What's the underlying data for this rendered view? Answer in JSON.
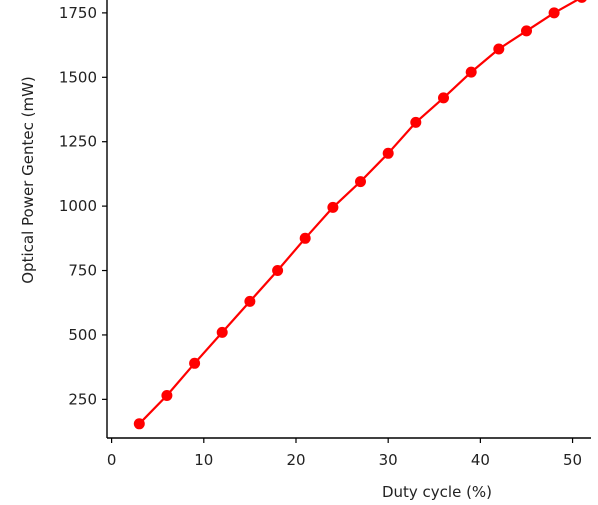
{
  "chart_data": {
    "type": "line",
    "title": "",
    "xlabel": "Duty cycle (%)",
    "ylabel": "Optical Power Gentec (mW)",
    "xlim": [
      -0.5,
      52
    ],
    "ylim": [
      100,
      1800
    ],
    "xticks": [
      0,
      10,
      20,
      30,
      40,
      50
    ],
    "yticks": [
      250,
      500,
      750,
      1000,
      1250,
      1500,
      1750
    ],
    "grid": false,
    "legend": "none",
    "series": [
      {
        "color": "#ff0000",
        "marker": "circle",
        "x": [
          3,
          6,
          9,
          12,
          15,
          18,
          21,
          24,
          27,
          30,
          33,
          36,
          39,
          42,
          45,
          48,
          51
        ],
        "y": [
          155,
          265,
          390,
          510,
          630,
          750,
          875,
          995,
          1095,
          1205,
          1325,
          1420,
          1520,
          1610,
          1680,
          1750,
          1810
        ]
      }
    ]
  }
}
